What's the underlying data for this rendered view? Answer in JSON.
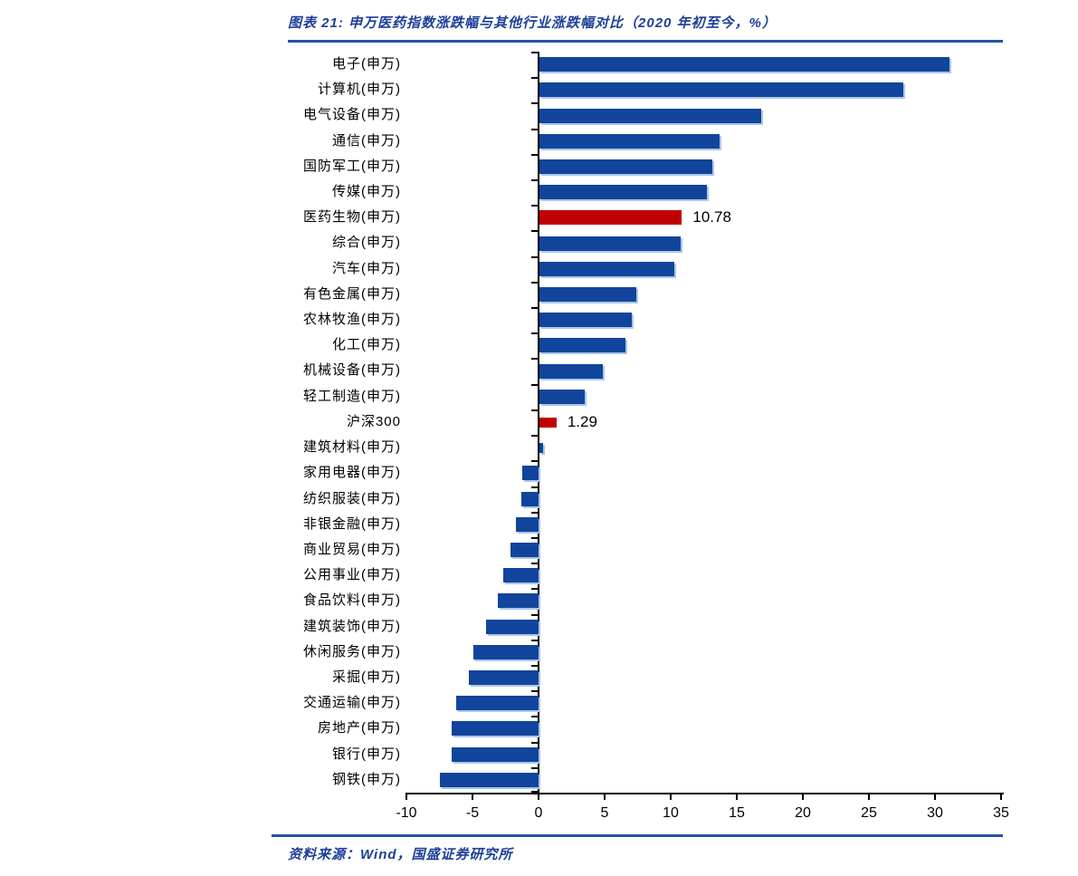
{
  "header": {
    "title": "图表 21:  申万医药指数涨跌幅与其他行业涨跌幅对比（2020 年初至今，%）"
  },
  "footer": {
    "source": "资料来源：Wind，国盛证券研究所"
  },
  "colors": {
    "title_blue": "#1d3e99",
    "rule_blue": "#2353a8",
    "bar_blue": "#11449b",
    "bar_red": "#c00000",
    "bar_shadow_blue": "#a9c7e9",
    "axis_black": "#000000"
  },
  "chart_data": {
    "type": "bar",
    "orientation": "horizontal",
    "title": "图表 21:  申万医药指数涨跌幅与其他行业涨跌幅对比（2020 年初至今，%）",
    "xlabel": "",
    "ylabel": "",
    "xlim": [
      -10,
      35
    ],
    "xticks": [
      "-10",
      "-5",
      "0",
      "5",
      "10",
      "15",
      "20",
      "25",
      "30",
      "35"
    ],
    "grid": false,
    "legend": "none",
    "categories": [
      "电子(申万)",
      "计算机(申万)",
      "电气设备(申万)",
      "通信(申万)",
      "国防军工(申万)",
      "传媒(申万)",
      "医药生物(申万)",
      "综合(申万)",
      "汽车(申万)",
      "有色金属(申万)",
      "农林牧渔(申万)",
      "化工(申万)",
      "机械设备(申万)",
      "轻工制造(申万)",
      "沪深300",
      "建筑材料(申万)",
      "家用电器(申万)",
      "纺织服装(申万)",
      "非银金融(申万)",
      "商业贸易(申万)",
      "公用事业(申万)",
      "食品饮料(申万)",
      "建筑装饰(申万)",
      "休闲服务(申万)",
      "采掘(申万)",
      "交通运输(申万)",
      "房地产(申万)",
      "银行(申万)",
      "钢铁(申万)"
    ],
    "values": [
      31.0,
      27.5,
      16.8,
      13.6,
      13.1,
      12.7,
      10.78,
      10.7,
      10.2,
      7.3,
      7.0,
      6.5,
      4.8,
      3.4,
      1.29,
      0.3,
      -1.2,
      -1.3,
      -1.7,
      -2.1,
      -2.7,
      -3.1,
      -4.0,
      -4.9,
      -5.3,
      -6.2,
      -6.6,
      -6.6,
      -7.5
    ],
    "highlighted_red_indices": [
      6,
      14
    ],
    "thin_bar_indices": [
      14,
      15
    ],
    "data_labels": {
      "6": "10.78",
      "14": "1.29"
    }
  }
}
